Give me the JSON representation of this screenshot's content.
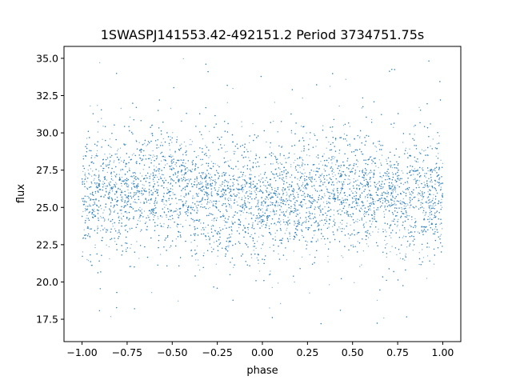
{
  "chart_data": {
    "type": "scatter",
    "title": "1SWASPJ141553.42-492151.2 Period 3734751.75s",
    "xlabel": "phase",
    "ylabel": "flux",
    "xlim": [
      -1.1,
      1.1
    ],
    "ylim": [
      16.0,
      35.8
    ],
    "x_ticks": [
      -1.0,
      -0.75,
      -0.5,
      -0.25,
      0.0,
      0.25,
      0.5,
      0.75,
      1.0
    ],
    "x_tick_labels": [
      "−1.00",
      "−0.75",
      "−0.50",
      "−0.25",
      "0.00",
      "0.25",
      "0.50",
      "0.75",
      "1.00"
    ],
    "y_ticks": [
      17.5,
      20.0,
      22.5,
      25.0,
      27.5,
      30.0,
      32.5,
      35.0
    ],
    "y_tick_labels": [
      "17.5",
      "20.0",
      "22.5",
      "25.0",
      "27.5",
      "30.0",
      "32.5",
      "35.0"
    ],
    "grid": false,
    "legend": "none",
    "marker_color": "#1f77b4",
    "series": [
      {
        "x_range": [
          -1.0,
          1.0
        ],
        "y_center": 25.5,
        "y_core_band": [
          22.5,
          29.5
        ],
        "y_full_range": [
          16.8,
          35.3
        ],
        "phase": [
          -1.0,
          -0.9,
          -0.8,
          -0.7,
          -0.6,
          -0.5,
          -0.4,
          -0.3,
          -0.2,
          -0.1,
          0.0,
          0.1,
          0.2,
          0.3,
          0.4,
          0.5,
          0.6,
          0.7,
          0.8,
          0.9,
          1.0
        ],
        "median_flux": [
          25.5,
          25.6,
          25.8,
          26.3,
          26.6,
          26.4,
          26.0,
          25.5,
          25.6,
          25.5,
          25.4,
          25.4,
          25.5,
          25.8,
          26.2,
          26.3,
          26.0,
          25.7,
          25.7,
          25.6,
          25.5
        ]
      }
    ]
  }
}
